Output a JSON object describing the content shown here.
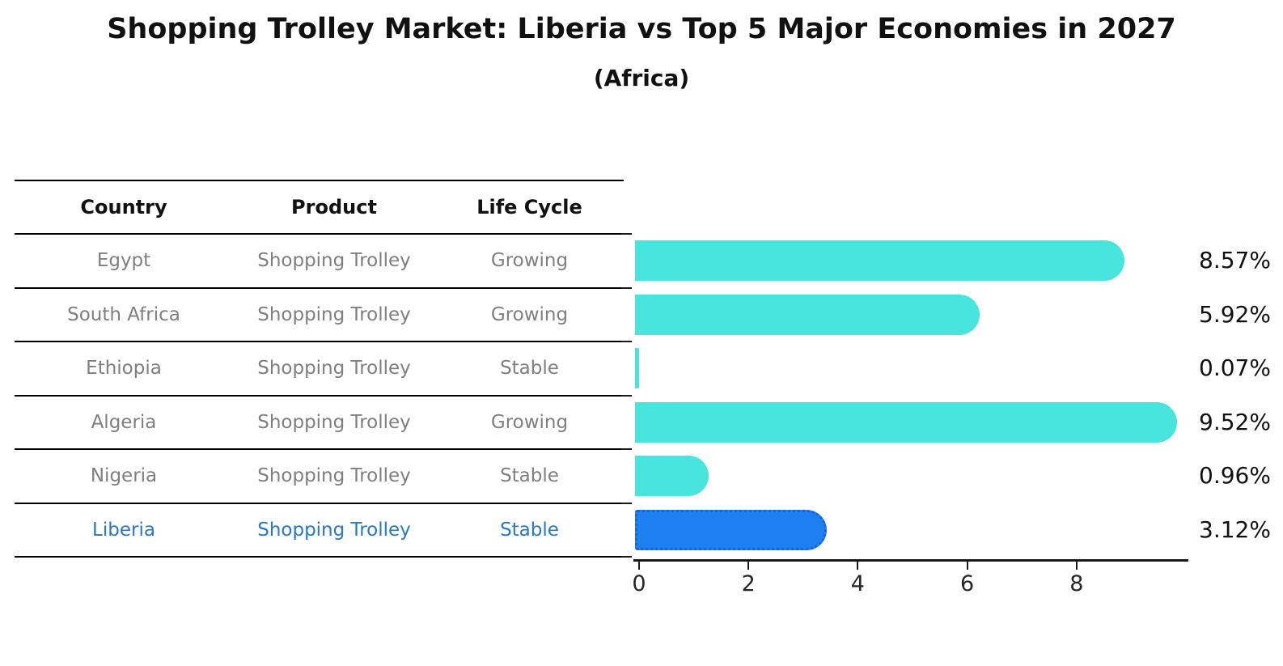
{
  "title": "Shopping Trolley Market: Liberia vs Top 5 Major Economies in 2027",
  "subtitle": "(Africa)",
  "table": {
    "headers": [
      "Country",
      "Product",
      "Life Cycle"
    ],
    "rows": [
      {
        "country": "Egypt",
        "product": "Shopping Trolley",
        "life_cycle": "Growing",
        "highlight": false
      },
      {
        "country": "South Africa",
        "product": "Shopping Trolley",
        "life_cycle": "Growing",
        "highlight": false
      },
      {
        "country": "Ethiopia",
        "product": "Shopping Trolley",
        "life_cycle": "Stable",
        "highlight": false
      },
      {
        "country": "Algeria",
        "product": "Shopping Trolley",
        "life_cycle": "Growing",
        "highlight": false
      },
      {
        "country": "Nigeria",
        "product": "Shopping Trolley",
        "life_cycle": "Stable",
        "highlight": false
      },
      {
        "country": "Liberia",
        "product": "Shopping Trolley",
        "life_cycle": "Stable",
        "highlight": true
      }
    ]
  },
  "chart_data": {
    "type": "bar",
    "orientation": "horizontal",
    "title": "Shopping Trolley Market: Liberia vs Top 5 Major Economies in 2027",
    "subtitle": "(Africa)",
    "categories": [
      "Egypt",
      "South Africa",
      "Ethiopia",
      "Algeria",
      "Nigeria",
      "Liberia"
    ],
    "values": [
      8.57,
      5.92,
      0.07,
      9.52,
      0.96,
      3.12
    ],
    "value_labels": [
      "8.57%",
      "5.92%",
      "0.07%",
      "9.52%",
      "0.96%",
      "3.12%"
    ],
    "x_ticks": [
      "0",
      "2",
      "4",
      "6",
      "8"
    ],
    "x_tick_values": [
      0,
      2,
      4,
      6,
      8
    ],
    "xlim": [
      0,
      10
    ],
    "grid": false,
    "legend": "none",
    "highlight_index": 5
  },
  "colors": {
    "bar": "#48E5DE",
    "highlight_bar": "#1E80F0",
    "highlight_border": "#1266D8",
    "header_text": "#111111",
    "row_text": "#7f7f7f",
    "highlight_text": "#2878c8",
    "value_text": "#111111",
    "axis": "#1a1a1a"
  }
}
